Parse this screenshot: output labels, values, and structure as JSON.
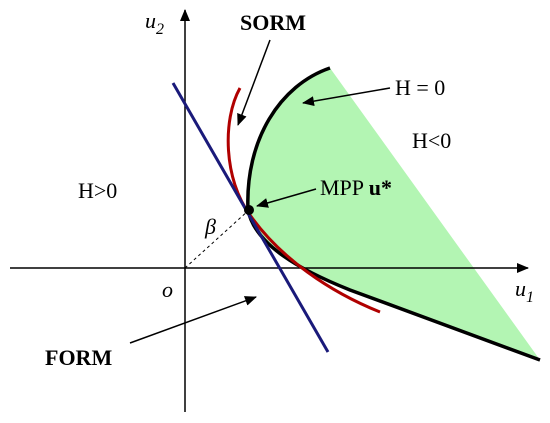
{
  "labels": {
    "u2": {
      "text": "u",
      "subscript": "2"
    },
    "u1": {
      "text": "u",
      "subscript": "1"
    },
    "origin": "o",
    "sorm": "SORM",
    "h_zero": "H = 0",
    "h_negative": "H<0",
    "h_positive": "H>0",
    "mpp": {
      "text": "MPP",
      "symbol": "u*"
    },
    "beta": "β",
    "form": "FORM"
  }
}
